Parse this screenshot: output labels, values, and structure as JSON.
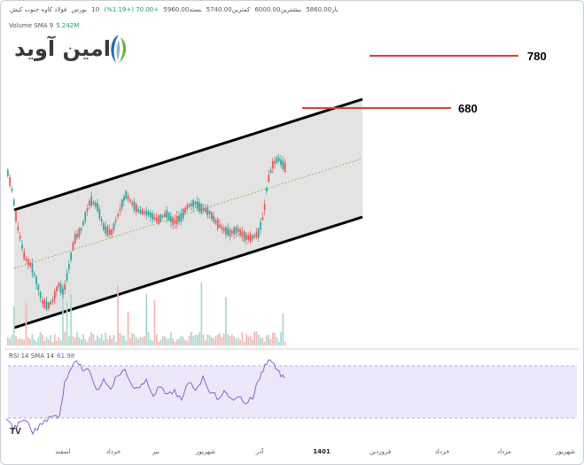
{
  "header": {
    "symbol": "فولاد کاوه جنوب کیش",
    "exchange": "بورس",
    "interval": "10",
    "change": "+70.00 (+1.19%)",
    "close_label": "بسته5960.00",
    "low_label": "کمترین5740.00",
    "high_label": "بیشترین6000.00",
    "open_label": "باز5860.00"
  },
  "volume_indicator": {
    "label": "Volume SMA 9",
    "value": "5.242M"
  },
  "logo": {
    "text": "امین آوید",
    "mark": "logo-mark"
  },
  "levels": [
    {
      "label": "780"
    },
    {
      "label": "680"
    }
  ],
  "rsi_indicator": {
    "label": "RSI 14 SMA 14",
    "value": "61.98"
  },
  "x_axis": {
    "ticks": [
      {
        "label": "اسفند"
      },
      {
        "label": "خرداد"
      },
      {
        "label": "تیر"
      },
      {
        "label": "شهریور"
      },
      {
        "label": "آذر"
      },
      {
        "label": "1401",
        "bold": true
      },
      {
        "label": "فروردین"
      },
      {
        "label": "خرداد"
      },
      {
        "label": "مرداد"
      },
      {
        "label": "شهریور"
      }
    ]
  },
  "colors": {
    "up": "#26a69a",
    "down": "#ef5350",
    "channel_fill": "#d9d9d9",
    "channel_line": "#000000",
    "level_line": "#e53935",
    "rsi_band": "#ece8fa",
    "rsi_line": "#7e57c2",
    "volume_up": "#a8d8d0",
    "volume_down": "#f4b6b3",
    "midline": "#7cb342"
  },
  "icons": {
    "tradingview": "tradingview-logo-icon"
  }
}
